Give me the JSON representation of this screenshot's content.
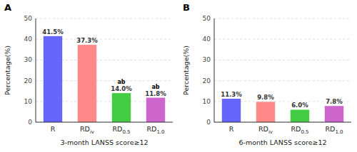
{
  "chart_data": [
    {
      "type": "bar",
      "title": "A",
      "categories": [
        "R",
        "RDiv",
        "RD0.5",
        "RD1.0"
      ],
      "values": [
        41.5,
        37.3,
        14.0,
        11.8
      ],
      "value_labels": [
        "41.5%",
        "37.3%",
        "14.0%",
        "11.8%"
      ],
      "colors": [
        "#6666FF",
        "#FF8888",
        "#44CC44",
        "#CC66CC"
      ],
      "data_labels": true,
      "annotations": [
        {
          "text": "ab",
          "category": "RD0.5"
        },
        {
          "text": "ab",
          "category": "RD1.0"
        }
      ],
      "x_label": "3-month LANSS score≥12",
      "y_label": "Percentage(%)",
      "ylim": [
        0,
        50
      ],
      "yticks": [
        0,
        10,
        20,
        30,
        40,
        50
      ],
      "grid": true
    },
    {
      "type": "bar",
      "title": "B",
      "categories": [
        "R",
        "RDiv",
        "RD0.5",
        "RD1.0"
      ],
      "values": [
        11.3,
        9.8,
        6.0,
        7.8
      ],
      "value_labels": [
        "11.3%",
        "9.8%",
        "6.0%",
        "7.8%"
      ],
      "colors": [
        "#6666FF",
        "#FF8888",
        "#44CC44",
        "#CC66CC"
      ],
      "data_labels": true,
      "x_label": "6-month LANSS score≥12",
      "y_label": "Percentage(%)",
      "ylim": [
        0,
        50
      ],
      "yticks": [
        0,
        10,
        20,
        30,
        40,
        50
      ],
      "grid": true
    }
  ]
}
